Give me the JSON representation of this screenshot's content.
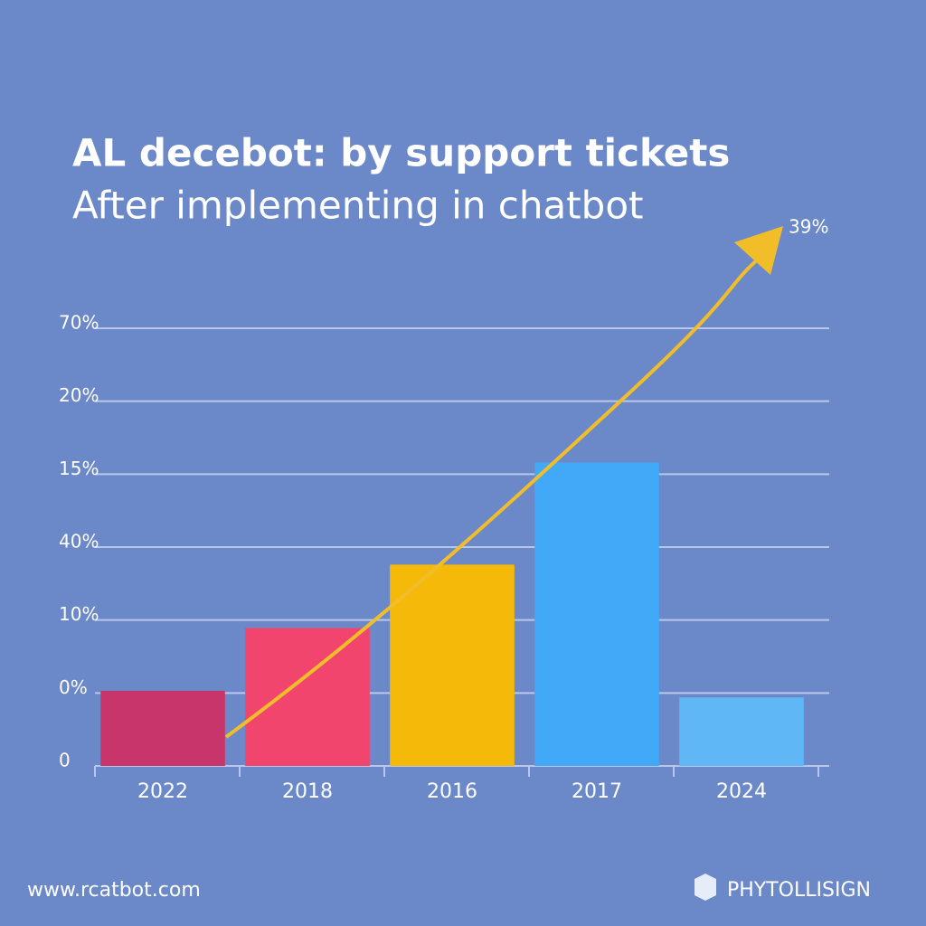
{
  "chart_data": {
    "type": "bar",
    "title": "AL decebot: by support tickets",
    "subtitle": "After implementing in chatbot",
    "annotation": "39%",
    "footer_left": "www.rcatbot.com",
    "footer_right": "PHYTOLLISIGN",
    "categories": [
      "2022",
      "2018",
      "2016",
      "2017",
      "2024"
    ],
    "values": [
      1.03,
      1.89,
      2.76,
      4.16,
      0.94
    ],
    "colors": [
      "#c8356a",
      "#f2456e",
      "#f5b90a",
      "#42a8f8",
      "#5fb8f5"
    ],
    "ylim": [
      0,
      6
    ],
    "yticks": [
      0,
      {
        "value": 1,
        "label": "0%"
      },
      {
        "value": 2,
        "label": "10%"
      },
      {
        "value": 3,
        "label": "40%"
      },
      {
        "value": 4,
        "label": "15%"
      },
      {
        "value": 5,
        "label": "20%"
      },
      {
        "value": 6,
        "label": "70%"
      }
    ],
    "grid": true
  }
}
